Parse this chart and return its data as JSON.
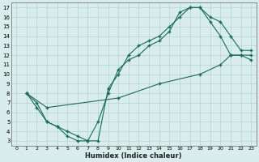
{
  "xlabel": "Humidex (Indice chaleur)",
  "background_color": "#d8edec",
  "grid_color": "#b8d8d5",
  "line_color": "#1a6b5a",
  "xlim": [
    -0.5,
    23.5
  ],
  "ylim": [
    2.5,
    17.5
  ],
  "xticks": [
    0,
    1,
    2,
    3,
    4,
    5,
    6,
    7,
    8,
    9,
    10,
    11,
    12,
    13,
    14,
    15,
    16,
    17,
    18,
    19,
    20,
    21,
    22,
    23
  ],
  "yticks": [
    3,
    4,
    5,
    6,
    7,
    8,
    9,
    10,
    11,
    12,
    13,
    14,
    15,
    16,
    17
  ],
  "line1_x": [
    1,
    2,
    3,
    4,
    5,
    6,
    7,
    8,
    9,
    10,
    11,
    12,
    13,
    14,
    15,
    16,
    17,
    18,
    19,
    20,
    21,
    22,
    23
  ],
  "line1_y": [
    8,
    6.5,
    5,
    4.5,
    3.5,
    3,
    3,
    5,
    8,
    10.5,
    11.5,
    12,
    13,
    13.5,
    14.5,
    16.5,
    17,
    17,
    16,
    15.5,
    14,
    12.5,
    12.5
  ],
  "line2_x": [
    1,
    2,
    3,
    4,
    5,
    6,
    7,
    8,
    9,
    10,
    11,
    12,
    13,
    14,
    15,
    16,
    17,
    18,
    19,
    20,
    21,
    22,
    23
  ],
  "line2_y": [
    8,
    7,
    5,
    4.5,
    4,
    3.5,
    3,
    3,
    8.5,
    10,
    12,
    13,
    13.5,
    14,
    15,
    16,
    17,
    17,
    15.5,
    14,
    12,
    12,
    12
  ],
  "line3_x": [
    1,
    3,
    10,
    14,
    18,
    20,
    21,
    22,
    23
  ],
  "line3_y": [
    8,
    6.5,
    7.5,
    9,
    10,
    11,
    12,
    12,
    11.5
  ]
}
